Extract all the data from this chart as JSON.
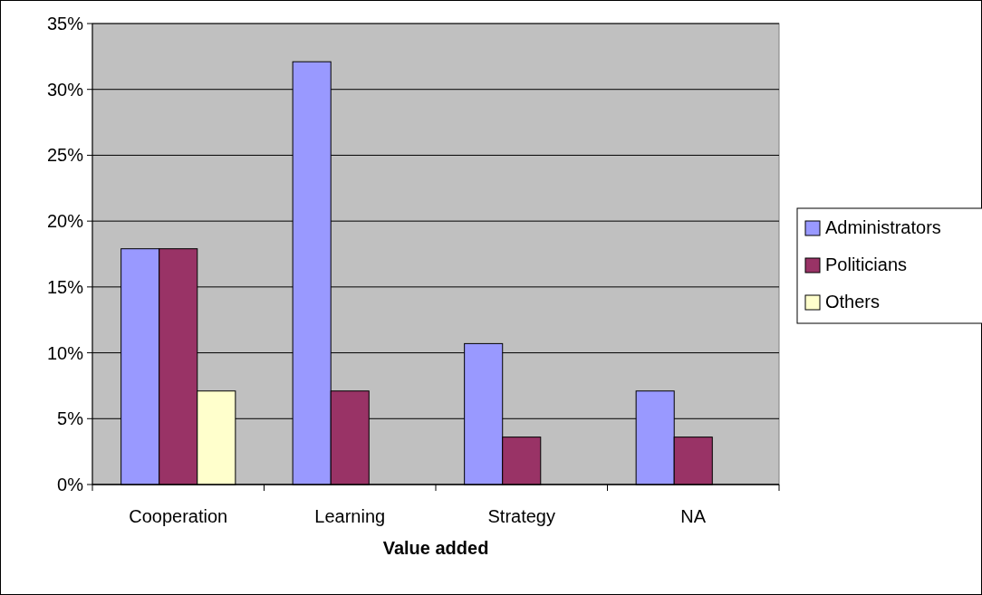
{
  "chart_data": {
    "type": "bar",
    "xlabel": "Value added",
    "categories": [
      "Cooperation",
      "Learning",
      "Strategy",
      "NA"
    ],
    "series": [
      {
        "name": "Administrators",
        "color": "#9999ff",
        "values": [
          17.9,
          32.1,
          10.7,
          7.1
        ]
      },
      {
        "name": "Politicians",
        "color": "#993366",
        "values": [
          17.9,
          7.1,
          3.6,
          3.6
        ]
      },
      {
        "name": "Others",
        "color": "#ffffcc",
        "values": [
          7.1,
          null,
          null,
          null
        ]
      }
    ],
    "ylim": [
      0,
      35
    ],
    "yticks": [
      {
        "value": 0,
        "label": "0%"
      },
      {
        "value": 5,
        "label": "5%"
      },
      {
        "value": 10,
        "label": "10%"
      },
      {
        "value": 15,
        "label": "15%"
      },
      {
        "value": 20,
        "label": "20%"
      },
      {
        "value": 25,
        "label": "25%"
      },
      {
        "value": 30,
        "label": "30%"
      },
      {
        "value": 35,
        "label": "35%"
      }
    ],
    "grid": "y",
    "legend": "right"
  }
}
